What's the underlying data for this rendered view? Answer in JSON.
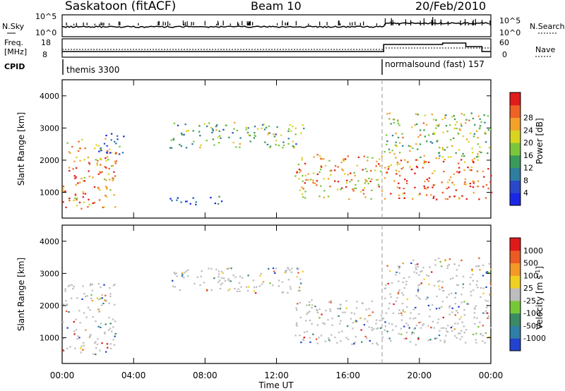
{
  "header": {
    "station": "Saskatoon (fitACF)",
    "beam": "Beam 10",
    "date": "20/Feb/2010"
  },
  "left_labels": {
    "nsky": "N.Sky",
    "freq_line1": "Freq.",
    "freq_line2": "[MHz]",
    "cpid": "CPID"
  },
  "right_labels": {
    "nsearch": "N.Search",
    "nave": "Nave"
  },
  "nsky_panel": {
    "left_tick_top": "10^5",
    "left_tick_bottom": "10^0",
    "right_tick_top": "10^5",
    "right_tick_bottom": "10^0"
  },
  "freq_panel": {
    "left_tick_top": "18",
    "left_tick_bottom": "8",
    "right_tick_top": "60",
    "right_tick_bottom": "0"
  },
  "cpid_panel": {
    "mode1": "themis 3300",
    "mode2": "normalsound (fast) 157",
    "mode_change_hour": 18.0
  },
  "chart_data": [
    {
      "type": "heatmap",
      "title": "Power",
      "ylabel": "Slant Range [km]",
      "xlabel": "Time UT",
      "ylim": [
        200,
        4500
      ],
      "yticks": [
        "1000",
        "2000",
        "3000",
        "4000"
      ],
      "colorbar": {
        "label": "Power [dB]",
        "range": [
          0,
          32
        ],
        "tick_labels": [
          "4",
          "8",
          "12",
          "16",
          "20",
          "24",
          "28"
        ],
        "colors": [
          "#1b27e6",
          "#2a49c8",
          "#2f7da0",
          "#3a9a5a",
          "#7cc63c",
          "#d8d521",
          "#f2a12a",
          "#ee6226",
          "#e01c1c"
        ]
      },
      "regions": [
        {
          "t": [
            0.0,
            3.0
          ],
          "r": [
            500,
            2700
          ],
          "level": 0.75
        },
        {
          "t": [
            2.0,
            3.5
          ],
          "r": [
            2200,
            2900
          ],
          "level": 0.25
        },
        {
          "t": [
            6.0,
            9.0
          ],
          "r": [
            600,
            900
          ],
          "level": 0.12
        },
        {
          "t": [
            6.0,
            13.5
          ],
          "r": [
            2400,
            3200
          ],
          "level": 0.45
        },
        {
          "t": [
            13.0,
            18.0
          ],
          "r": [
            800,
            2200
          ],
          "level": 0.7
        },
        {
          "t": [
            18.0,
            24.0
          ],
          "r": [
            800,
            2100
          ],
          "level": 0.85
        },
        {
          "t": [
            18.0,
            24.0
          ],
          "r": [
            2100,
            3500
          ],
          "level": 0.55
        }
      ]
    },
    {
      "type": "heatmap",
      "title": "Velocity",
      "ylabel": "Slant Range [km]",
      "xlabel": "Time UT",
      "ylim": [
        200,
        4500
      ],
      "yticks": [
        "1000",
        "2000",
        "3000",
        "4000"
      ],
      "colorbar": {
        "label": "Velocity [m s^-1]",
        "range": [
          -1200,
          1200
        ],
        "tick_labels": [
          "1000",
          "500",
          "100",
          "25",
          "-25",
          "-100",
          "-500",
          "-1000"
        ],
        "colors": [
          "#2343cf",
          "#2f7fa6",
          "#3a8a64",
          "#76c838",
          "#bdbdbd",
          "#f0d021",
          "#f2992a",
          "#ec5b24",
          "#e01a1a"
        ]
      },
      "regions": [
        {
          "t": [
            0.0,
            3.0
          ],
          "r": [
            500,
            2700
          ],
          "level": 0.5
        },
        {
          "t": [
            6.0,
            13.5
          ],
          "r": [
            2400,
            3200
          ],
          "level": 0.5
        },
        {
          "t": [
            13.0,
            18.0
          ],
          "r": [
            800,
            2200
          ],
          "level": 0.5
        },
        {
          "t": [
            18.0,
            24.0
          ],
          "r": [
            800,
            3500
          ],
          "level": 0.5
        }
      ]
    }
  ],
  "time_axis": {
    "label": "Time UT",
    "ticks": [
      "00:00",
      "04:00",
      "08:00",
      "12:00",
      "16:00",
      "20:00",
      "00:00"
    ]
  }
}
